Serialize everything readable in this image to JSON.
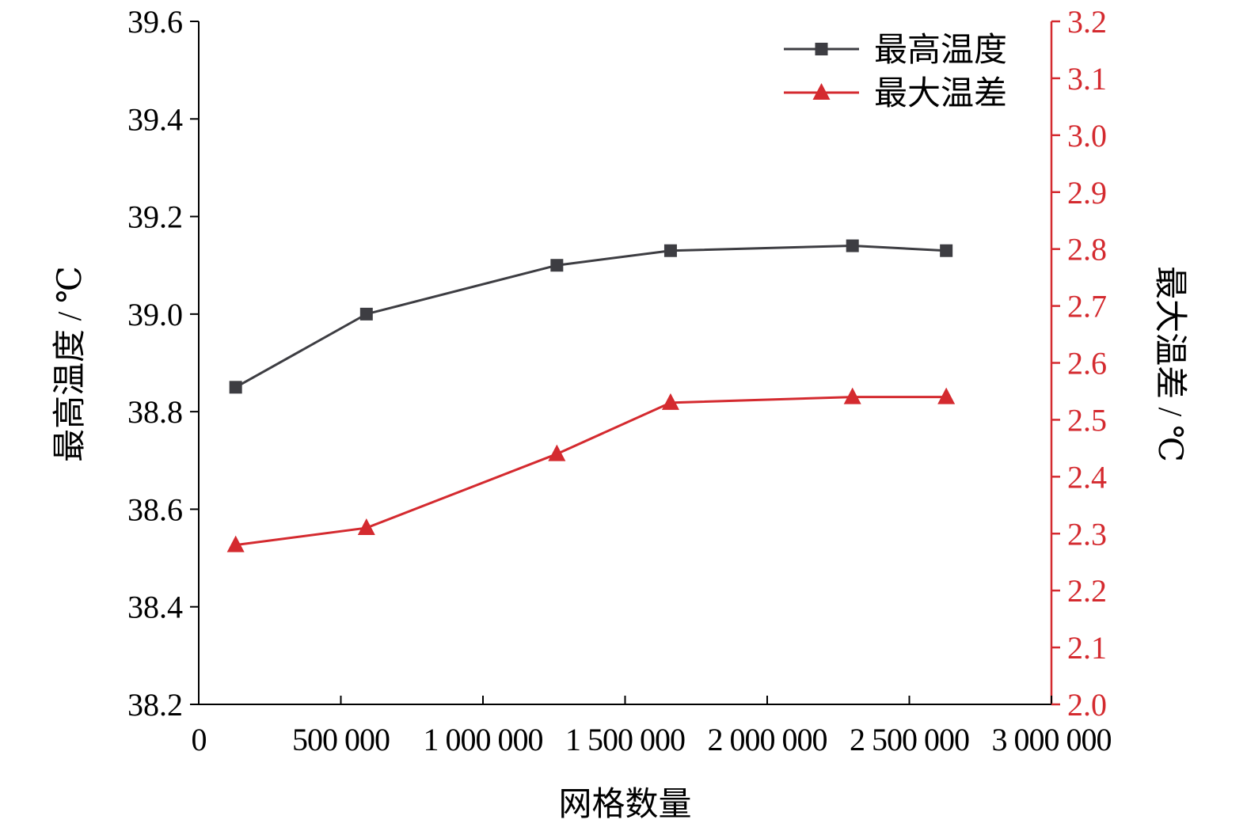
{
  "chart_data": {
    "type": "line",
    "xlabel": "网格数量",
    "ylabel_left": "最高温度 / ℃",
    "ylabel_right": "最大温差 / ℃",
    "xlim": [
      0,
      3000000
    ],
    "ylim_left": [
      38.2,
      39.6
    ],
    "ylim_right": [
      2.0,
      3.2
    ],
    "x_ticks": [
      0,
      500000,
      1000000,
      1500000,
      2000000,
      2500000,
      3000000
    ],
    "x_tick_labels": [
      "0",
      "500 000",
      "1 000 000",
      "1 500 000",
      "2 000 000",
      "2 500 000",
      "3 000 000"
    ],
    "y_left_ticks": [
      38.2,
      38.4,
      38.6,
      38.8,
      39.0,
      39.2,
      39.4,
      39.6
    ],
    "y_left_tick_labels": [
      "38.2",
      "38.4",
      "38.6",
      "38.8",
      "39.0",
      "39.2",
      "39.4",
      "39.6"
    ],
    "y_right_ticks": [
      2.0,
      2.1,
      2.2,
      2.3,
      2.4,
      2.5,
      2.6,
      2.7,
      2.8,
      2.9,
      3.0,
      3.1,
      3.2
    ],
    "y_right_tick_labels": [
      "2.0",
      "2.1",
      "2.2",
      "2.3",
      "2.4",
      "2.5",
      "2.6",
      "2.7",
      "2.8",
      "2.9",
      "3.0",
      "3.1",
      "3.2"
    ],
    "legend_position": "top-right",
    "grid": false,
    "series": [
      {
        "name": "最高温度",
        "axis": "left",
        "marker": "square",
        "color": "#3d3d42",
        "x": [
          130000,
          590000,
          1260000,
          1660000,
          2300000,
          2630000
        ],
        "y": [
          38.85,
          39.0,
          39.1,
          39.13,
          39.14,
          39.13
        ]
      },
      {
        "name": "最大温差",
        "axis": "right",
        "marker": "triangle",
        "color": "#d42a2f",
        "x": [
          130000,
          590000,
          1260000,
          1660000,
          2300000,
          2630000
        ],
        "y": [
          2.28,
          2.31,
          2.44,
          2.53,
          2.54,
          2.54
        ]
      }
    ]
  },
  "colors": {
    "axis_left": "#000000",
    "axis_right": "#d42a2f",
    "series_max_temp": "#3d3d42",
    "series_max_diff": "#d42a2f"
  }
}
